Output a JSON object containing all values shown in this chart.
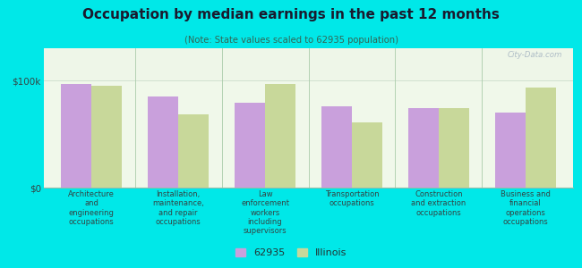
{
  "title": "Occupation by median earnings in the past 12 months",
  "subtitle": "(Note: State values scaled to 62935 population)",
  "categories": [
    "Architecture\nand\nengineering\noccupations",
    "Installation,\nmaintenance,\nand repair\noccupations",
    "Law\nenforcement\nworkers\nincluding\nsupervisors",
    "Transportation\noccupations",
    "Construction\nand extraction\noccupations",
    "Business and\nfinancial\noperations\noccupations"
  ],
  "values_62935": [
    97000,
    85000,
    79000,
    76000,
    74000,
    70000
  ],
  "values_illinois": [
    95000,
    68000,
    97000,
    61000,
    74000,
    93000
  ],
  "bar_color_62935": "#c9a0dc",
  "bar_color_illinois": "#c8d89a",
  "background_color": "#00e8e8",
  "plot_bg": "#f0f8e8",
  "ylim": [
    0,
    130000
  ],
  "yticks": [
    0,
    100000
  ],
  "ytick_labels": [
    "$0",
    "$100k"
  ],
  "watermark": "City-Data.com",
  "legend_label_1": "62935",
  "legend_label_2": "Illinois",
  "bar_width": 0.35
}
